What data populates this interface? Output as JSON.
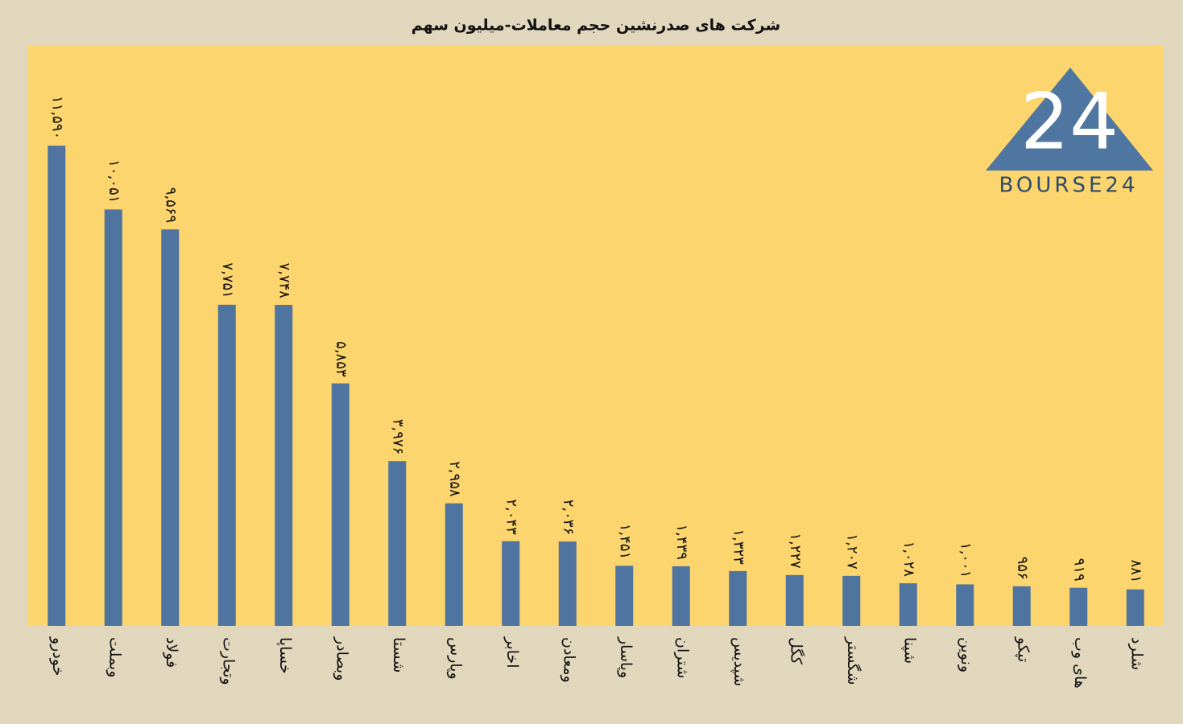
{
  "chart_data": {
    "type": "bar",
    "title": "شرکت های صدرنشین حجم معاملات-میلیون سهم",
    "categories": [
      "خودرو",
      "وبملت",
      "فولاد",
      "وتجارت",
      "خساپا",
      "وبصادر",
      "شستا",
      "وپارس",
      "اخابر",
      "ومعادن",
      "وپاسار",
      "شتران",
      "شپدیس",
      "کگل",
      "شگستر",
      "شپنا",
      "ونوین",
      "تپکو",
      "های وب",
      "شلرد"
    ],
    "values": [
      11590,
      10051,
      9569,
      7751,
      7748,
      5853,
      3976,
      2958,
      2043,
      2036,
      1451,
      1439,
      1323,
      1227,
      1207,
      1028,
      1001,
      956,
      919,
      881
    ],
    "value_labels": [
      "۱۱,۵۹۰",
      "۱۰,۰۵۱",
      "۹,۵۶۹",
      "۷,۷۵۱",
      "۷,۷۴۸",
      "۵,۸۵۳",
      "۳,۹۷۶",
      "۲,۹۵۸",
      "۲,۰۴۳",
      "۲,۰۳۶",
      "۱,۴۵۱",
      "۱,۴۳۹",
      "۱,۳۲۳",
      "۱,۲۲۷",
      "۱,۲۰۷",
      "۱,۰۲۸",
      "۱,۰۰۱",
      "۹۵۶",
      "۹۱۹",
      "۸۸۱"
    ],
    "color": "#4f74a0",
    "ylim": [
      0,
      14000
    ],
    "grid": false
  },
  "logo": {
    "mark": "24",
    "text": "BOURSE24"
  }
}
